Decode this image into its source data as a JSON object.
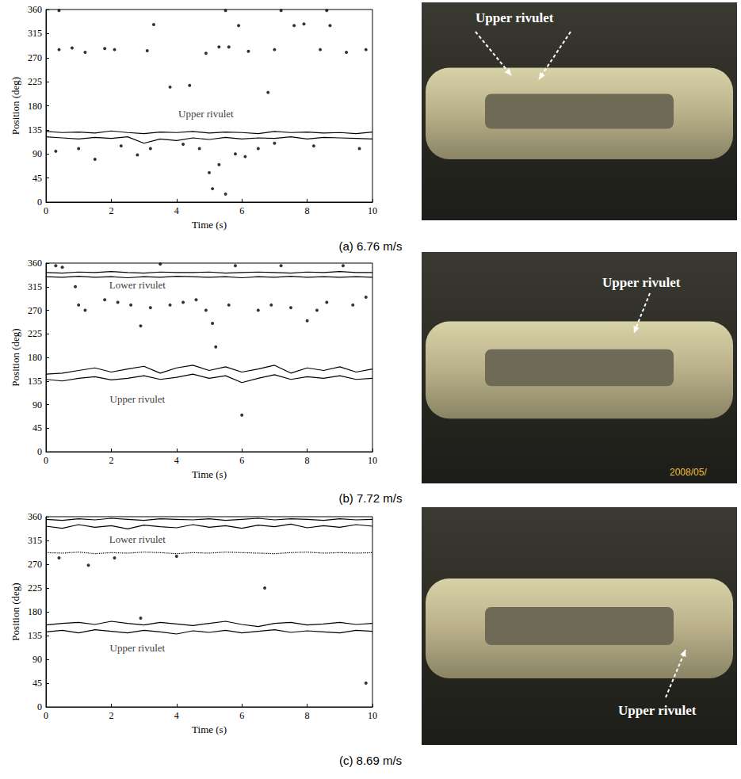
{
  "chart_data": [
    {
      "type": "line",
      "title": "(a) 6.76 m/s",
      "x_label": "Time (s)",
      "y_label": "Position (deg)",
      "xlim": [
        0,
        10
      ],
      "xticks": [
        0,
        2,
        4,
        6,
        8,
        10
      ],
      "ylim": [
        0,
        360
      ],
      "yticks": [
        0,
        45,
        90,
        135,
        180,
        225,
        270,
        315,
        360
      ],
      "grid": false,
      "color": "#000000",
      "x": [
        0,
        0.5,
        1,
        1.5,
        2,
        2.5,
        3,
        3.5,
        4,
        4.5,
        5,
        5.5,
        6,
        6.5,
        7,
        7.5,
        8,
        8.5,
        9,
        9.5,
        10
      ],
      "series": [
        {
          "type": "line",
          "color": "#000000",
          "line_style": "solid",
          "values": [
            132,
            130,
            131,
            129,
            133,
            130,
            128,
            131,
            130,
            132,
            129,
            131,
            130,
            128,
            132,
            130,
            131,
            129,
            130,
            128,
            131
          ]
        },
        {
          "type": "line",
          "color": "#000000",
          "line_style": "solid",
          "values": [
            122,
            120,
            118,
            121,
            119,
            122,
            110,
            118,
            115,
            120,
            117,
            121,
            118,
            120,
            119,
            122,
            118,
            121,
            120,
            119,
            118
          ]
        },
        {
          "type": "scatter",
          "color": "#000000",
          "marker": "circle",
          "x": [
            0.4,
            0.8,
            1.2,
            1.8,
            2.1,
            3.1,
            3.3,
            3.8,
            4.4,
            4.9,
            5.3,
            5.6,
            5.9,
            6.2,
            6.8,
            7.0,
            7.6,
            7.9,
            8.4,
            8.7,
            9.2,
            9.8,
            0.4,
            5.5,
            7.2,
            8.6,
            1.0,
            1.5,
            2.3,
            2.8,
            3.2,
            4.2,
            5.0,
            5.1,
            5.3,
            5.5,
            5.8,
            6.1,
            6.5,
            7.0,
            8.2,
            9.6,
            0.3,
            4.7
          ],
          "values": [
            285,
            288,
            280,
            287,
            285,
            283,
            332,
            215,
            218,
            278,
            290,
            290,
            330,
            282,
            205,
            285,
            330,
            333,
            285,
            330,
            280,
            285,
            358,
            358,
            358,
            358,
            100,
            80,
            105,
            88,
            100,
            108,
            55,
            25,
            70,
            15,
            90,
            85,
            100,
            110,
            105,
            100,
            95,
            100
          ]
        }
      ],
      "annotations": [
        {
          "text": "Upper rivulet",
          "x": 4.9,
          "y": 165
        }
      ],
      "photo_labels": [
        "Upper rivulet"
      ]
    },
    {
      "type": "line",
      "title": "(b) 7.72 m/s",
      "x_label": "Time (s)",
      "y_label": "Position (deg)",
      "xlim": [
        0,
        10
      ],
      "xticks": [
        0,
        2,
        4,
        6,
        8,
        10
      ],
      "ylim": [
        0,
        360
      ],
      "yticks": [
        0,
        45,
        90,
        135,
        180,
        225,
        270,
        315,
        360
      ],
      "grid": false,
      "color": "#000000",
      "x": [
        0,
        0.5,
        1,
        1.5,
        2,
        2.5,
        3,
        3.5,
        4,
        4.5,
        5,
        5.5,
        6,
        6.5,
        7,
        7.5,
        8,
        8.5,
        9,
        9.5,
        10
      ],
      "series": [
        {
          "type": "line",
          "color": "#000000",
          "line_style": "solid",
          "values": [
            342,
            341,
            343,
            342,
            344,
            342,
            341,
            343,
            342,
            342,
            343,
            341,
            342,
            343,
            342,
            341,
            343,
            342,
            344,
            342,
            342
          ]
        },
        {
          "type": "line",
          "color": "#000000",
          "line_style": "solid",
          "values": [
            334,
            333,
            335,
            333,
            334,
            332,
            334,
            333,
            335,
            334,
            333,
            334,
            332,
            334,
            333,
            335,
            333,
            334,
            333,
            334,
            333
          ]
        },
        {
          "type": "line",
          "color": "#000000",
          "line_style": "solid",
          "values": [
            148,
            150,
            155,
            160,
            152,
            158,
            163,
            150,
            160,
            165,
            155,
            162,
            152,
            158,
            165,
            150,
            160,
            155,
            162,
            152,
            158
          ]
        },
        {
          "type": "line",
          "color": "#000000",
          "line_style": "solid",
          "values": [
            138,
            135,
            140,
            143,
            137,
            140,
            145,
            138,
            142,
            148,
            140,
            145,
            132,
            140,
            147,
            138,
            143,
            140,
            145,
            138,
            140
          ]
        },
        {
          "type": "scatter",
          "color": "#000000",
          "marker": "circle",
          "x": [
            0.3,
            0.5,
            0.9,
            1.0,
            1.2,
            1.8,
            2.2,
            2.6,
            2.9,
            3.2,
            3.5,
            3.8,
            4.2,
            4.6,
            4.9,
            5.1,
            5.2,
            5.6,
            5.8,
            6.0,
            6.5,
            6.9,
            7.2,
            7.5,
            8.0,
            8.3,
            8.6,
            9.1,
            9.4,
            9.8
          ],
          "values": [
            355,
            352,
            315,
            280,
            270,
            290,
            285,
            280,
            240,
            275,
            358,
            280,
            285,
            290,
            270,
            245,
            200,
            280,
            355,
            70,
            270,
            280,
            355,
            275,
            250,
            270,
            285,
            355,
            280,
            295
          ]
        }
      ],
      "annotations": [
        {
          "text": "Lower rivulet",
          "x": 2.8,
          "y": 318
        },
        {
          "text": "Upper rivulet",
          "x": 2.8,
          "y": 100
        }
      ],
      "photo_labels": [
        "Upper rivulet"
      ],
      "photo_stamp": "2008/05/"
    },
    {
      "type": "line",
      "title": "(c) 8.69 m/s",
      "x_label": "Time (s)",
      "y_label": "Position (deg)",
      "xlim": [
        0,
        10
      ],
      "xticks": [
        0,
        2,
        4,
        6,
        8,
        10
      ],
      "ylim": [
        0,
        360
      ],
      "yticks": [
        0,
        45,
        90,
        135,
        180,
        225,
        270,
        315,
        360
      ],
      "grid": false,
      "color": "#000000",
      "x": [
        0,
        0.5,
        1,
        1.5,
        2,
        2.5,
        3,
        3.5,
        4,
        4.5,
        5,
        5.5,
        6,
        6.5,
        7,
        7.5,
        8,
        8.5,
        9,
        9.5,
        10
      ],
      "series": [
        {
          "type": "line",
          "color": "#000000",
          "line_style": "solid",
          "values": [
            355,
            353,
            356,
            354,
            357,
            355,
            353,
            356,
            355,
            354,
            356,
            353,
            355,
            357,
            354,
            356,
            355,
            353,
            356,
            354,
            355
          ]
        },
        {
          "type": "line",
          "color": "#000000",
          "line_style": "solid",
          "values": [
            342,
            338,
            345,
            340,
            343,
            337,
            344,
            341,
            339,
            345,
            340,
            343,
            338,
            344,
            341,
            346,
            339,
            343,
            340,
            345,
            342
          ]
        },
        {
          "type": "line",
          "color": "#000000",
          "line_style": "dotted",
          "values": [
            292,
            291,
            293,
            290,
            292,
            291,
            293,
            292,
            290,
            292,
            291,
            293,
            292,
            291,
            290,
            292,
            293,
            291,
            292,
            291,
            292
          ]
        },
        {
          "type": "line",
          "color": "#000000",
          "line_style": "solid",
          "values": [
            155,
            158,
            160,
            156,
            162,
            158,
            155,
            160,
            157,
            154,
            158,
            162,
            156,
            152,
            158,
            160,
            155,
            157,
            160,
            156,
            158
          ]
        },
        {
          "type": "line",
          "color": "#000000",
          "line_style": "solid",
          "values": [
            142,
            145,
            140,
            146,
            143,
            140,
            145,
            142,
            138,
            144,
            141,
            145,
            140,
            143,
            146,
            141,
            144,
            142,
            140,
            145,
            143
          ]
        },
        {
          "type": "scatter",
          "color": "#000000",
          "marker": "circle",
          "x": [
            0.4,
            1.3,
            2.1,
            2.9,
            4.0,
            6.7,
            9.8
          ],
          "values": [
            282,
            268,
            282,
            168,
            285,
            225,
            45
          ]
        }
      ],
      "annotations": [
        {
          "text": "Lower rivulet",
          "x": 2.8,
          "y": 318
        },
        {
          "text": "Upper rivulet",
          "x": 2.8,
          "y": 112
        }
      ],
      "photo_labels": [
        "Upper rivulet"
      ]
    }
  ]
}
